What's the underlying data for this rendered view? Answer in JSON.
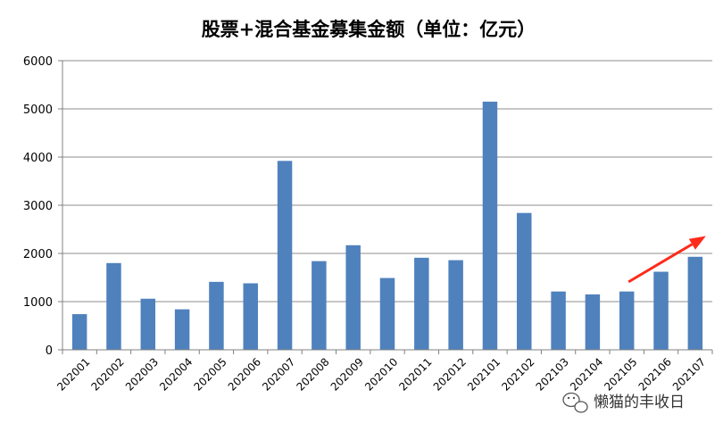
{
  "chart_data": {
    "type": "bar",
    "title": "股票+混合基金募集金额（单位：亿元）",
    "xlabel": "",
    "ylabel": "",
    "categories": [
      "202001",
      "202002",
      "202003",
      "202004",
      "202005",
      "202006",
      "202007",
      "202008",
      "202009",
      "202010",
      "202011",
      "202012",
      "202101",
      "202102",
      "202103",
      "202104",
      "202105",
      "202106",
      "202107"
    ],
    "values": [
      740,
      1800,
      1060,
      840,
      1410,
      1380,
      3920,
      1840,
      2170,
      1490,
      1910,
      1860,
      5150,
      2840,
      1210,
      1150,
      1210,
      1620,
      1930
    ],
    "ylim": [
      0,
      6000
    ],
    "yticks": [
      0,
      1000,
      2000,
      3000,
      4000,
      5000,
      6000
    ],
    "grid": true,
    "legend": "none",
    "colors": {
      "bar": "#4F81BD",
      "arrow": "#FF2A1A",
      "grid": "#8C8C8C"
    },
    "annotation": {
      "type": "arrow",
      "from_x": "202105",
      "to_x": "202107"
    }
  },
  "watermark": {
    "text": "懒猫的丰收日",
    "icon": "wechat-icon"
  }
}
